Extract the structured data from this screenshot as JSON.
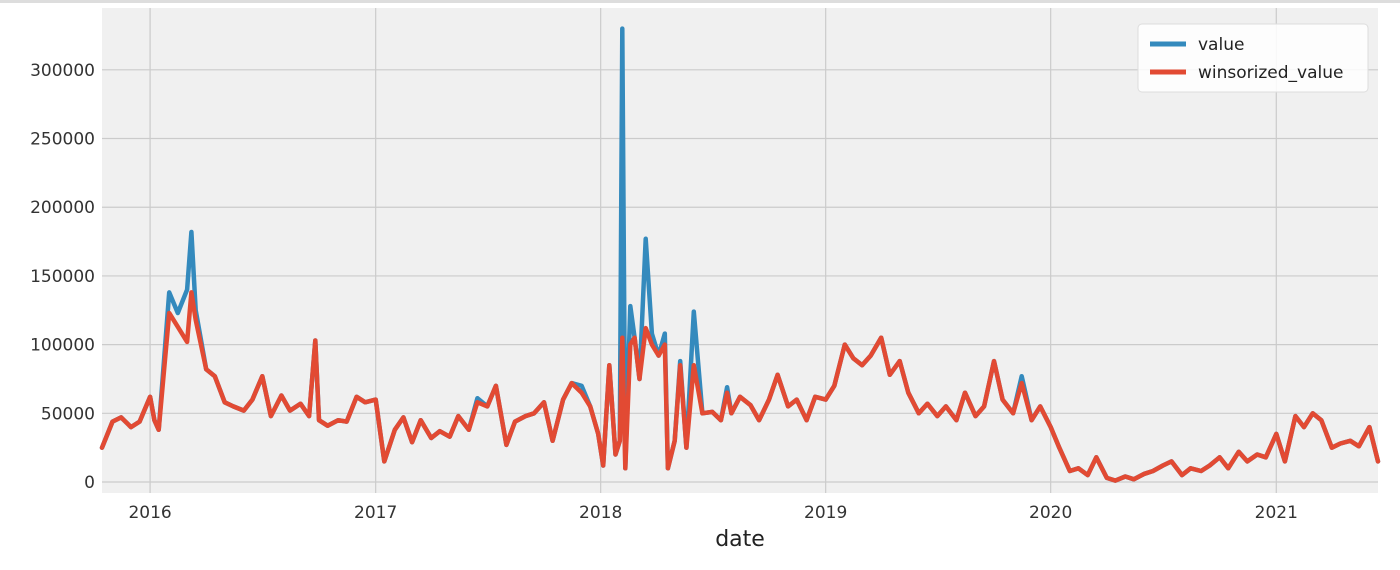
{
  "chart_data": {
    "type": "line",
    "title": "",
    "xlabel": "date",
    "ylabel": "",
    "xlim": [
      "2015-10-15",
      "2021-06-15"
    ],
    "ylim": [
      -8000,
      345000
    ],
    "x_ticks": [
      "2016",
      "2017",
      "2018",
      "2019",
      "2020",
      "2021"
    ],
    "y_ticks": [
      0,
      50000,
      100000,
      150000,
      200000,
      250000,
      300000
    ],
    "grid": true,
    "legend_position": "top-right",
    "x": [
      "2015-10-15",
      "2015-11-01",
      "2015-11-15",
      "2015-12-01",
      "2015-12-15",
      "2016-01-01",
      "2016-01-08",
      "2016-01-15",
      "2016-02-01",
      "2016-02-15",
      "2016-03-01",
      "2016-03-08",
      "2016-03-15",
      "2016-04-01",
      "2016-04-15",
      "2016-05-01",
      "2016-05-15",
      "2016-06-01",
      "2016-06-15",
      "2016-07-01",
      "2016-07-15",
      "2016-08-01",
      "2016-08-15",
      "2016-09-01",
      "2016-09-15",
      "2016-09-25",
      "2016-10-01",
      "2016-10-15",
      "2016-11-01",
      "2016-11-15",
      "2016-12-01",
      "2016-12-15",
      "2017-01-01",
      "2017-01-15",
      "2017-02-01",
      "2017-02-15",
      "2017-03-01",
      "2017-03-15",
      "2017-04-01",
      "2017-04-15",
      "2017-05-01",
      "2017-05-15",
      "2017-06-01",
      "2017-06-15",
      "2017-07-01",
      "2017-07-15",
      "2017-08-01",
      "2017-08-15",
      "2017-09-01",
      "2017-09-15",
      "2017-10-01",
      "2017-10-15",
      "2017-11-01",
      "2017-11-15",
      "2017-12-01",
      "2017-12-15",
      "2017-12-28",
      "2018-01-05",
      "2018-01-15",
      "2018-01-25",
      "2018-02-01",
      "2018-02-05",
      "2018-02-10",
      "2018-02-18",
      "2018-02-25",
      "2018-03-05",
      "2018-03-15",
      "2018-03-25",
      "2018-04-05",
      "2018-04-15",
      "2018-04-20",
      "2018-05-01",
      "2018-05-10",
      "2018-05-20",
      "2018-06-01",
      "2018-06-15",
      "2018-07-01",
      "2018-07-15",
      "2018-07-25",
      "2018-08-01",
      "2018-08-15",
      "2018-09-01",
      "2018-09-15",
      "2018-10-01",
      "2018-10-15",
      "2018-11-01",
      "2018-11-15",
      "2018-12-01",
      "2018-12-15",
      "2019-01-01",
      "2019-01-15",
      "2019-02-01",
      "2019-02-15",
      "2019-03-01",
      "2019-03-15",
      "2019-04-01",
      "2019-04-15",
      "2019-05-01",
      "2019-05-15",
      "2019-06-01",
      "2019-06-15",
      "2019-07-01",
      "2019-07-15",
      "2019-08-01",
      "2019-08-15",
      "2019-09-01",
      "2019-09-15",
      "2019-10-01",
      "2019-10-15",
      "2019-11-01",
      "2019-11-15",
      "2019-12-01",
      "2019-12-15",
      "2020-01-01",
      "2020-01-15",
      "2020-02-01",
      "2020-02-15",
      "2020-03-01",
      "2020-03-15",
      "2020-04-01",
      "2020-04-15",
      "2020-05-01",
      "2020-05-15",
      "2020-06-01",
      "2020-06-15",
      "2020-07-01",
      "2020-07-15",
      "2020-08-01",
      "2020-08-15",
      "2020-09-01",
      "2020-09-15",
      "2020-10-01",
      "2020-10-15",
      "2020-11-01",
      "2020-11-15",
      "2020-12-01",
      "2020-12-15",
      "2021-01-01",
      "2021-01-15",
      "2021-02-01",
      "2021-02-15",
      "2021-03-01",
      "2021-03-15",
      "2021-04-01",
      "2021-04-15",
      "2021-05-01",
      "2021-05-15",
      "2021-06-01",
      "2021-06-15"
    ],
    "series": [
      {
        "name": "value",
        "color": "#348ABD",
        "values": [
          25000,
          44000,
          47000,
          40000,
          44000,
          62000,
          45000,
          38000,
          138000,
          123000,
          140000,
          182000,
          125000,
          82000,
          77000,
          58000,
          55000,
          52000,
          60000,
          77000,
          48000,
          63000,
          52000,
          57000,
          48000,
          103000,
          45000,
          41000,
          45000,
          44000,
          62000,
          58000,
          60000,
          15000,
          38000,
          47000,
          29000,
          45000,
          32000,
          37000,
          33000,
          48000,
          38000,
          61000,
          55000,
          70000,
          27000,
          44000,
          48000,
          50000,
          58000,
          30000,
          60000,
          72000,
          70000,
          55000,
          35000,
          12000,
          85000,
          20000,
          30000,
          330000,
          10000,
          128000,
          105000,
          75000,
          177000,
          108000,
          92000,
          108000,
          10000,
          30000,
          88000,
          25000,
          124000,
          50000,
          51000,
          45000,
          69000,
          50000,
          62000,
          56000,
          45000,
          60000,
          78000,
          55000,
          60000,
          45000,
          62000,
          60000,
          70000,
          100000,
          90000,
          85000,
          92000,
          105000,
          78000,
          88000,
          65000,
          50000,
          57000,
          48000,
          55000,
          45000,
          65000,
          48000,
          55000,
          88000,
          60000,
          50000,
          77000,
          45000,
          55000,
          40000,
          25000,
          8000,
          10000,
          5000,
          18000,
          3000,
          1000,
          4000,
          2000,
          6000,
          8000,
          12000,
          15000,
          5000,
          10000,
          8000,
          12000,
          18000,
          10000,
          22000,
          15000,
          20000,
          18000,
          35000,
          15000,
          48000,
          40000,
          50000,
          45000,
          25000,
          28000,
          30000,
          26000,
          40000,
          15000
        ]
      },
      {
        "name": "winsorized_value",
        "color": "#E24A33",
        "values": [
          25000,
          44000,
          47000,
          40000,
          44000,
          62000,
          45000,
          38000,
          123000,
          113000,
          102000,
          138000,
          118000,
          82000,
          77000,
          58000,
          55000,
          52000,
          60000,
          77000,
          48000,
          63000,
          52000,
          57000,
          48000,
          103000,
          45000,
          41000,
          45000,
          44000,
          62000,
          58000,
          60000,
          15000,
          38000,
          47000,
          29000,
          45000,
          32000,
          37000,
          33000,
          48000,
          38000,
          58000,
          55000,
          70000,
          27000,
          44000,
          48000,
          50000,
          58000,
          30000,
          60000,
          72000,
          65000,
          55000,
          35000,
          12000,
          85000,
          20000,
          30000,
          105000,
          10000,
          100000,
          105000,
          75000,
          112000,
          100000,
          92000,
          100000,
          10000,
          30000,
          85000,
          25000,
          85000,
          50000,
          51000,
          45000,
          65000,
          50000,
          62000,
          56000,
          45000,
          60000,
          78000,
          55000,
          60000,
          45000,
          62000,
          60000,
          70000,
          100000,
          90000,
          85000,
          92000,
          105000,
          78000,
          88000,
          65000,
          50000,
          57000,
          48000,
          55000,
          45000,
          65000,
          48000,
          55000,
          88000,
          60000,
          50000,
          72000,
          45000,
          55000,
          40000,
          25000,
          8000,
          10000,
          5000,
          18000,
          3000,
          1000,
          4000,
          2000,
          6000,
          8000,
          12000,
          15000,
          5000,
          10000,
          8000,
          12000,
          18000,
          10000,
          22000,
          15000,
          20000,
          18000,
          35000,
          15000,
          48000,
          40000,
          50000,
          45000,
          25000,
          28000,
          30000,
          26000,
          40000,
          15000
        ]
      }
    ]
  }
}
